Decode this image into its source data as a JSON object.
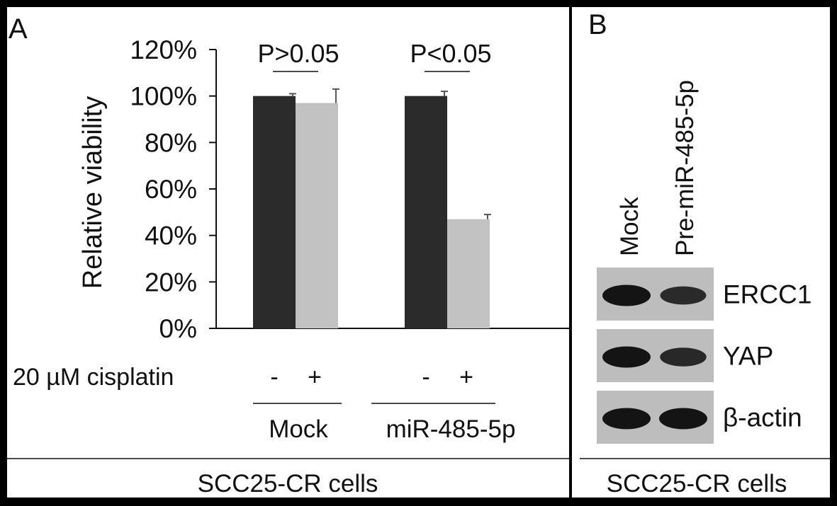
{
  "panel_a": {
    "letter": "A",
    "treatment_label": "20 µM cisplatin",
    "footer_label": "SCC25-CR cells"
  },
  "panel_b": {
    "letter": "B",
    "lanes": [
      "Mock",
      "Pre-miR-485-5p"
    ],
    "bands": [
      {
        "label": "ERCC1",
        "intensity": [
          1.0,
          0.7
        ]
      },
      {
        "label": "YAP",
        "intensity": [
          1.0,
          0.75
        ]
      },
      {
        "label": "β-actin",
        "intensity": [
          1.0,
          1.0
        ]
      }
    ],
    "footer_label": "SCC25-CR cells"
  },
  "colors": {
    "background": "#ffffff",
    "minus_bar": "#2b2b2b",
    "plus_bar": "#c2c2c2",
    "blot_bg": "#bdbdbd",
    "band": "#141414"
  },
  "chart_data": {
    "type": "bar",
    "ylabel": "Relative viability",
    "ylim": [
      0,
      120
    ],
    "ytick_step": 20,
    "ytick_labels": [
      "0%",
      "20%",
      "40%",
      "60%",
      "80%",
      "100%",
      "120%"
    ],
    "groups": [
      {
        "name": "Mock",
        "significance": "P>0.05",
        "bars": [
          {
            "treatment": "-",
            "value": 100,
            "error": 1
          },
          {
            "treatment": "+",
            "value": 97,
            "error": 6
          }
        ]
      },
      {
        "name": "miR-485-5p",
        "significance": "P<0.05",
        "bars": [
          {
            "treatment": "-",
            "value": 100,
            "error": 2
          },
          {
            "treatment": "+",
            "value": 47,
            "error": 2
          }
        ]
      }
    ]
  }
}
